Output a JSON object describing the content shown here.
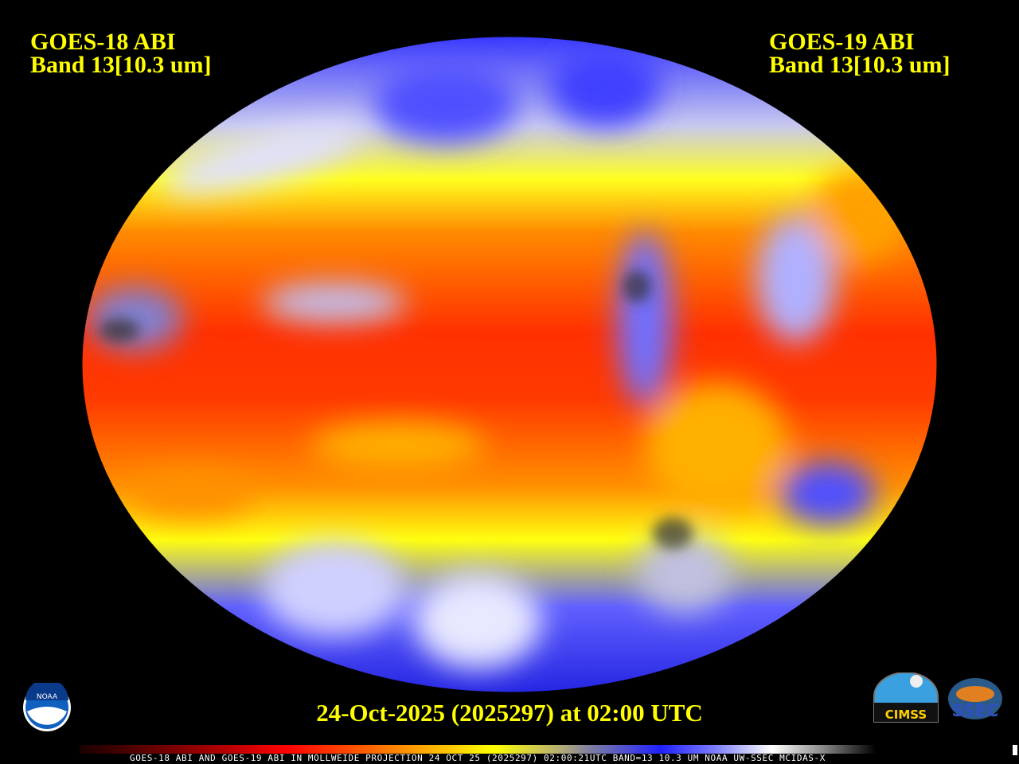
{
  "left_title": {
    "line1": "GOES-18 ABI",
    "line2": "Band 13[10.3 um]"
  },
  "right_title": {
    "line1": "GOES-19 ABI",
    "line2": "Band 13[10.3 um]"
  },
  "date_label": "24-Oct-2025 (2025297) at 02:00 UTC",
  "footer": "GOES-18 ABI AND GOES-19 ABI IN MOLLWEIDE PROJECTION 24 OCT 25 (2025297) 02:00:21UTC BAND=13 10.3 UM NOAA UW-SSEC MCIDAS-X",
  "logos": {
    "noaa": "NOAA",
    "cimss": "CIMSS",
    "ssec": "SSEC"
  },
  "colors": {
    "title": "#ffff00",
    "warm": "#ff2000",
    "mid": "#ffff00",
    "cold": "#2020ff",
    "coldest": "#ffffff"
  }
}
